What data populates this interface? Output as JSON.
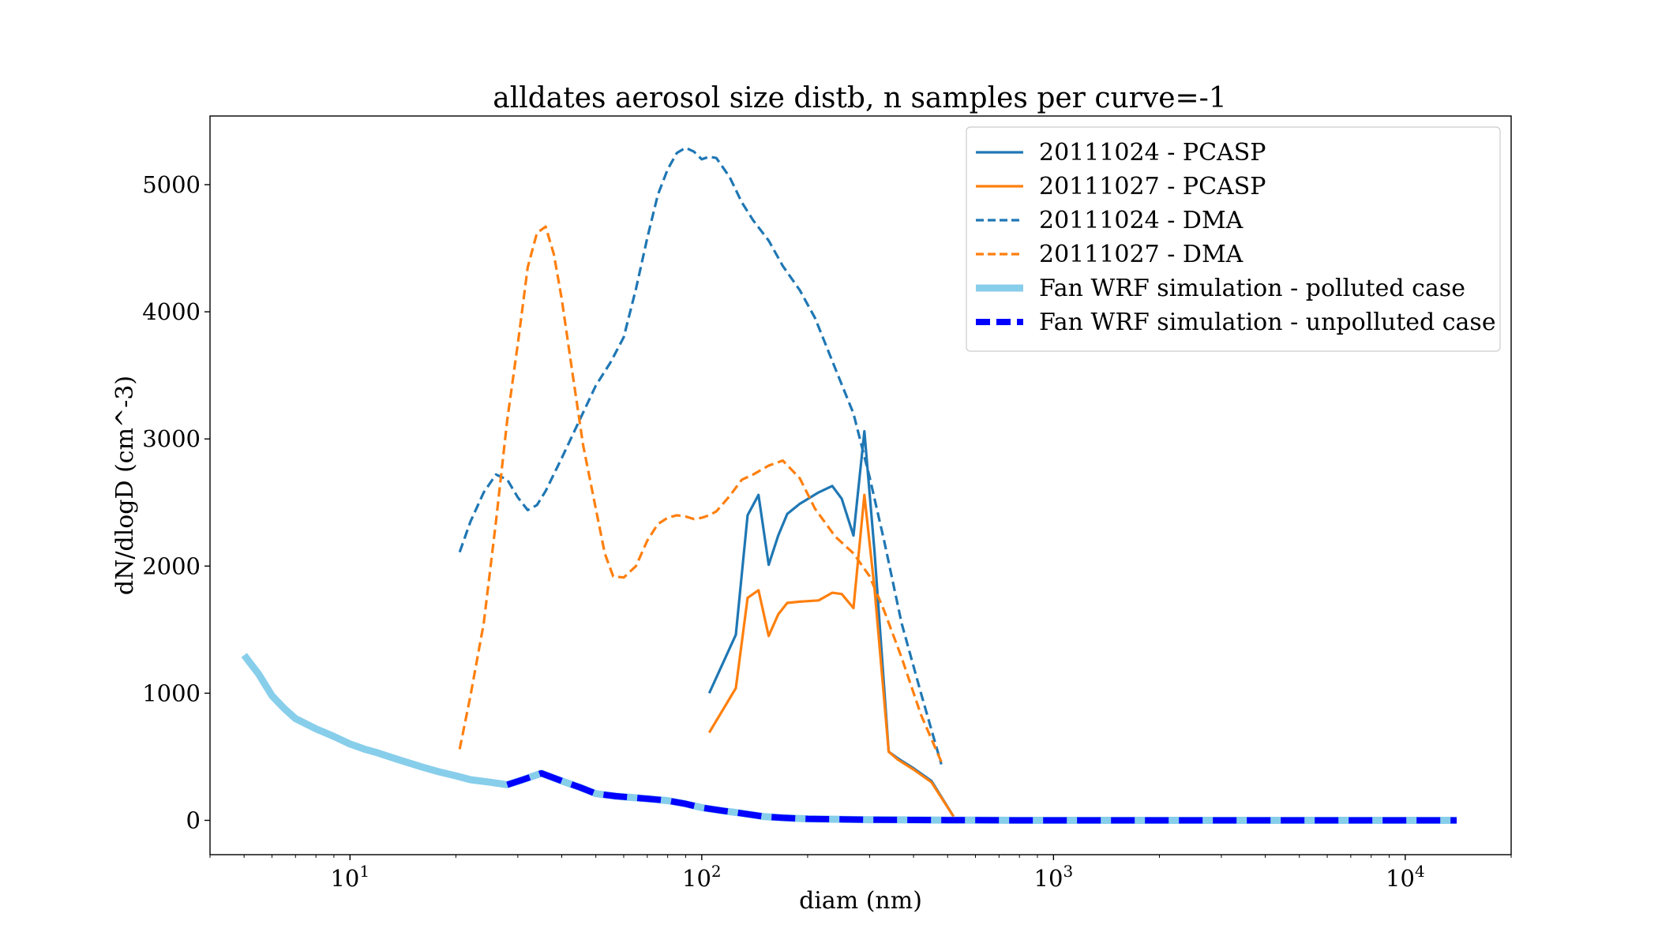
{
  "chart_data": {
    "type": "line",
    "title": "alldates aerosol size distb, n samples per curve=-1",
    "xlabel": "diam (nm)",
    "ylabel": "dN/dlogD (cm^-3)",
    "xscale": "log",
    "xlim": [
      4,
      20000
    ],
    "ylim": [
      -270,
      5540
    ],
    "x_ticks": [
      {
        "value": 10,
        "base": "10",
        "exp": "1"
      },
      {
        "value": 100,
        "base": "10",
        "exp": "2"
      },
      {
        "value": 1000,
        "base": "10",
        "exp": "3"
      },
      {
        "value": 10000,
        "base": "10",
        "exp": "4"
      }
    ],
    "y_ticks": [
      0,
      1000,
      2000,
      3000,
      4000,
      5000
    ],
    "legend_position": "top-right",
    "grid": false,
    "series": [
      {
        "name": "20111024 - PCASP",
        "color": "#1f77b4",
        "style": "solid",
        "width": 3.2,
        "x": [
          105,
          125,
          135,
          145,
          155,
          165,
          175,
          190,
          215,
          235,
          250,
          270,
          290,
          310,
          340,
          360,
          400,
          450,
          520
        ],
        "y": [
          1000,
          1460,
          2400,
          2560,
          2010,
          2240,
          2410,
          2490,
          2580,
          2630,
          2530,
          2240,
          3060,
          2110,
          540,
          490,
          410,
          310,
          30
        ]
      },
      {
        "name": "20111027 - PCASP",
        "color": "#ff7f0e",
        "style": "solid",
        "width": 3.2,
        "x": [
          105,
          125,
          135,
          145,
          155,
          165,
          175,
          190,
          215,
          235,
          250,
          270,
          290,
          310,
          340,
          360,
          400,
          450,
          520
        ],
        "y": [
          690,
          1040,
          1750,
          1810,
          1450,
          1620,
          1710,
          1720,
          1730,
          1790,
          1780,
          1670,
          2560,
          1820,
          540,
          480,
          400,
          300,
          30
        ]
      },
      {
        "name": "20111024 - DMA",
        "color": "#1f77b4",
        "style": "dashed",
        "width": 3.2,
        "x": [
          20.5,
          22,
          24,
          26,
          28,
          30,
          32,
          34,
          36,
          40,
          45,
          50,
          55,
          60,
          65,
          70,
          75,
          80,
          85,
          90,
          95,
          100,
          105,
          110,
          120,
          130,
          140,
          155,
          170,
          190,
          210,
          240,
          270,
          300,
          330,
          370,
          420,
          480
        ],
        "y": [
          2110,
          2350,
          2580,
          2720,
          2680,
          2540,
          2440,
          2480,
          2590,
          2850,
          3150,
          3420,
          3600,
          3800,
          4180,
          4580,
          4920,
          5120,
          5250,
          5290,
          5260,
          5200,
          5220,
          5210,
          5060,
          4860,
          4720,
          4560,
          4360,
          4170,
          3950,
          3550,
          3200,
          2700,
          2200,
          1550,
          1000,
          440
        ]
      },
      {
        "name": "20111027 - DMA",
        "color": "#ff7f0e",
        "style": "dashed",
        "width": 3.2,
        "x": [
          20.5,
          22,
          24,
          26,
          28,
          30,
          32,
          34,
          36,
          38,
          40,
          43,
          46,
          50,
          53,
          56,
          60,
          65,
          70,
          75,
          80,
          85,
          90,
          95,
          100,
          105,
          110,
          120,
          130,
          140,
          155,
          170,
          190,
          210,
          240,
          270,
          300,
          330,
          370,
          420,
          480
        ],
        "y": [
          560,
          980,
          1550,
          2350,
          3150,
          3750,
          4350,
          4620,
          4670,
          4450,
          4100,
          3500,
          2950,
          2450,
          2100,
          1920,
          1910,
          2000,
          2200,
          2330,
          2380,
          2400,
          2390,
          2370,
          2380,
          2400,
          2430,
          2550,
          2680,
          2720,
          2790,
          2830,
          2690,
          2450,
          2230,
          2100,
          1920,
          1650,
          1280,
          830,
          460
        ]
      },
      {
        "name": "Fan WRF simulation - polluted case",
        "color": "#87ceeb",
        "style": "solid",
        "width": 9,
        "x": [
          5,
          5.5,
          6,
          6.5,
          7,
          8,
          9,
          10,
          11,
          12,
          14,
          16,
          18,
          20,
          22,
          25,
          28,
          31,
          35,
          40,
          45,
          50,
          57,
          63,
          70,
          80,
          90,
          100,
          115,
          130,
          150,
          170,
          200,
          250,
          300,
          400,
          500,
          600,
          800,
          1000,
          2000,
          5000,
          10000,
          14000
        ],
        "y": [
          1300,
          1150,
          980,
          880,
          800,
          720,
          660,
          600,
          560,
          530,
          470,
          420,
          380,
          350,
          320,
          300,
          280,
          320,
          370,
          310,
          260,
          210,
          190,
          180,
          170,
          155,
          130,
          100,
          75,
          55,
          30,
          20,
          12,
          8,
          5,
          3,
          2,
          1,
          0,
          0,
          0,
          0,
          0,
          0
        ]
      },
      {
        "name": "Fan WRF simulation - unpolluted case",
        "color": "#0000ff",
        "style": "dashed",
        "width": 8,
        "x": [
          28,
          31,
          35,
          40,
          45,
          50,
          57,
          63,
          70,
          80,
          90,
          100,
          115,
          130,
          150,
          170,
          200,
          250,
          300,
          400,
          500,
          600,
          800,
          1000,
          2000,
          5000,
          10000,
          14000
        ],
        "y": [
          280,
          320,
          370,
          310,
          260,
          210,
          190,
          180,
          170,
          155,
          130,
          100,
          75,
          55,
          30,
          20,
          12,
          8,
          5,
          3,
          2,
          1,
          0,
          0,
          0,
          0,
          0,
          0
        ]
      }
    ]
  }
}
